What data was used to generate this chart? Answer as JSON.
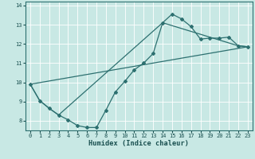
{
  "title": "",
  "xlabel": "Humidex (Indice chaleur)",
  "ylabel": "",
  "xlim": [
    -0.5,
    23.5
  ],
  "ylim": [
    7.5,
    14.2
  ],
  "yticks": [
    8,
    9,
    10,
    11,
    12,
    13,
    14
  ],
  "xticks": [
    0,
    1,
    2,
    3,
    4,
    5,
    6,
    7,
    8,
    9,
    10,
    11,
    12,
    13,
    14,
    15,
    16,
    17,
    18,
    19,
    20,
    21,
    22,
    23
  ],
  "bg_color": "#c8e8e4",
  "grid_color": "#ffffff",
  "line_color": "#2d7070",
  "line1_x": [
    0,
    1,
    2,
    3,
    4,
    5,
    6,
    7,
    8,
    9,
    10,
    11,
    12,
    13,
    14,
    15,
    16,
    17,
    18,
    19,
    20,
    21,
    22,
    23
  ],
  "line1_y": [
    9.9,
    9.05,
    8.65,
    8.3,
    8.05,
    7.75,
    7.65,
    7.65,
    8.55,
    9.5,
    10.05,
    10.65,
    11.0,
    11.5,
    13.1,
    13.55,
    13.3,
    12.9,
    12.25,
    12.3,
    12.3,
    12.35,
    11.9,
    11.85
  ],
  "line2_x": [
    0,
    1,
    2,
    3,
    14,
    22,
    23
  ],
  "line2_y": [
    9.9,
    9.05,
    8.65,
    8.3,
    13.1,
    11.9,
    11.85
  ],
  "line3_x": [
    0,
    23
  ],
  "line3_y": [
    9.9,
    11.85
  ]
}
